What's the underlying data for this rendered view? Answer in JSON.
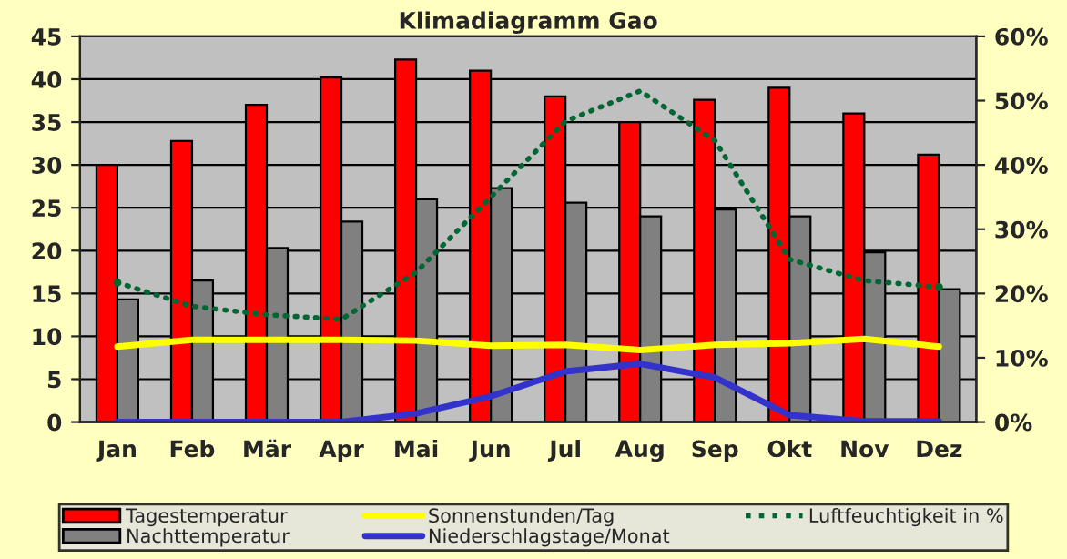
{
  "chart_data": {
    "type": "bar",
    "title": "Klimadiagramm Gao",
    "categories": [
      "Jan",
      "Feb",
      "Mär",
      "Apr",
      "Mai",
      "Jun",
      "Jul",
      "Aug",
      "Sep",
      "Okt",
      "Nov",
      "Dez"
    ],
    "series": [
      {
        "name": "Tagestemperatur",
        "color": "#ff0000",
        "values": [
          30,
          32.8,
          37,
          40.2,
          42.3,
          41,
          38,
          35,
          37.6,
          39,
          36,
          31.2
        ]
      },
      {
        "name": "Nachttemperatur",
        "color": "#808080",
        "values": [
          14.3,
          16.5,
          20.3,
          23.4,
          26,
          27.3,
          25.6,
          24,
          24.8,
          24,
          19.8,
          15.5
        ]
      },
      {
        "name": "Sonnenstunden/Tag",
        "color": "#ffff00",
        "type": "line",
        "line_style": "solid",
        "values": [
          8.8,
          9.6,
          9.6,
          9.6,
          9.5,
          8.9,
          9,
          8.4,
          9,
          9.2,
          9.7,
          8.8
        ]
      },
      {
        "name": "Niederschlagstage/Monat",
        "color": "#3333cc",
        "type": "line",
        "line_style": "solid",
        "values": [
          0,
          0,
          0,
          0,
          1,
          3,
          5.9,
          6.8,
          5.2,
          0.8,
          0.1,
          0.1
        ]
      },
      {
        "name": "Luftfeuchtigkeit in %",
        "color": "#006633",
        "type": "line",
        "line_style": "dotted",
        "axis": "y2",
        "values": [
          21.7,
          18,
          16.7,
          16,
          23.3,
          35,
          46.8,
          51.5,
          43.8,
          25.3,
          22,
          21
        ]
      }
    ],
    "ylim": [
      0,
      45
    ],
    "yticks": [
      0,
      5,
      10,
      15,
      20,
      25,
      30,
      35,
      40,
      45
    ],
    "y2lim": [
      0,
      60
    ],
    "y2ticks": [
      {
        "value": 0,
        "label": "0%"
      },
      {
        "value": 10,
        "label": "10%"
      },
      {
        "value": 20,
        "label": "20%"
      },
      {
        "value": 30,
        "label": "30%"
      },
      {
        "value": 40,
        "label": "40%"
      },
      {
        "value": 50,
        "label": "50%"
      },
      {
        "value": 60,
        "label": "60%"
      }
    ],
    "grid": "y",
    "legend": "bottom"
  }
}
